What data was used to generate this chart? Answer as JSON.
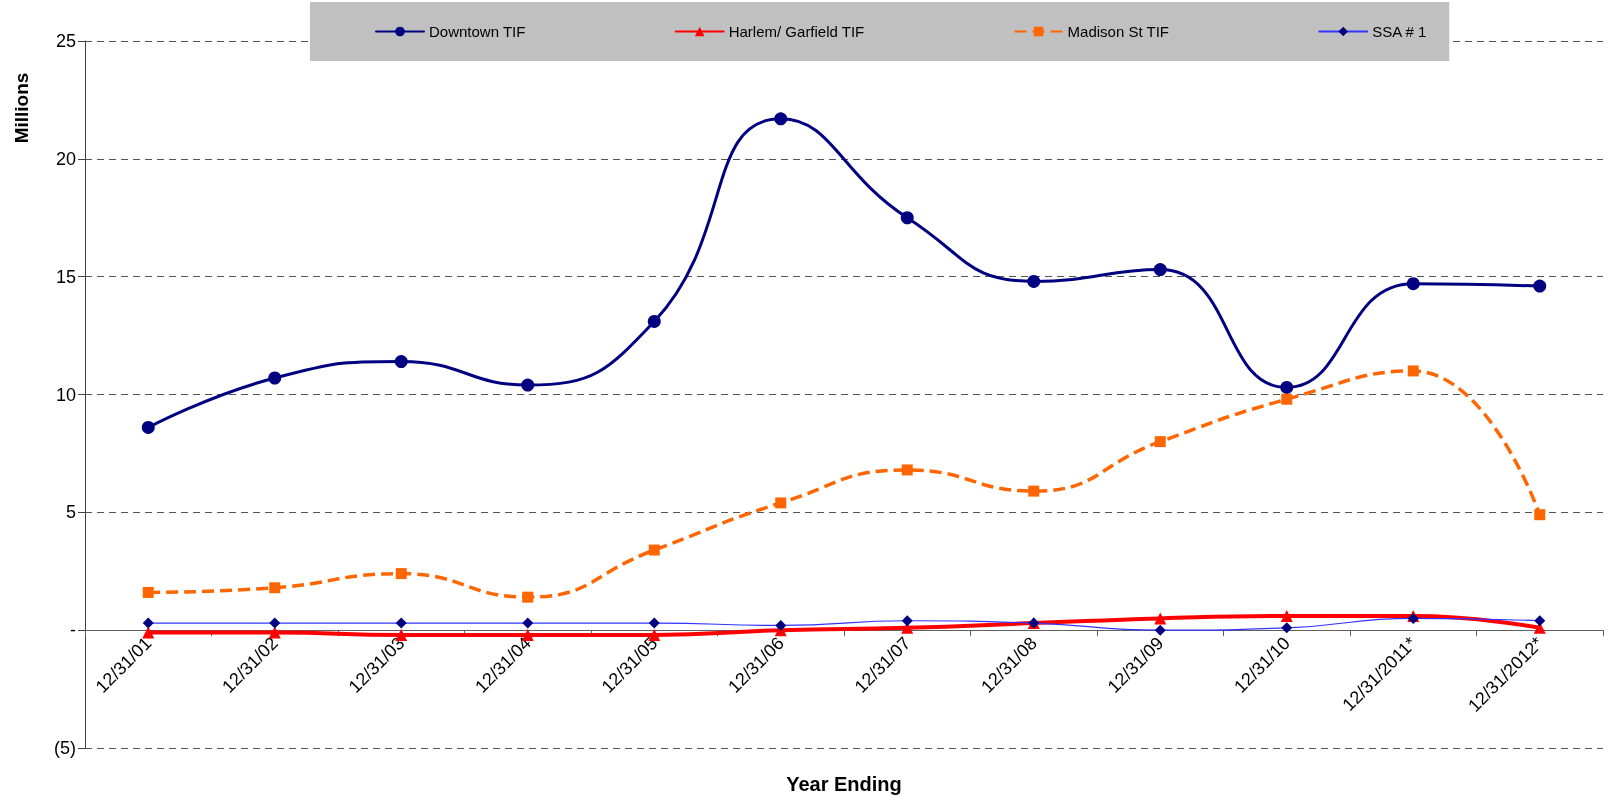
{
  "chart_data": {
    "type": "line",
    "categories": [
      "12/31/01",
      "12/31/02",
      "12/31/03",
      "12/31/04",
      "12/31/05",
      "12/31/06",
      "12/31/07",
      "12/31/08",
      "12/31/09",
      "12/31/10",
      "12/31/2011*",
      "12/31/2012*"
    ],
    "series": [
      {
        "name": "Downtown TIF",
        "color": "#000080",
        "marker": "circle",
        "line_style": "solid",
        "values": [
          8.6,
          10.7,
          11.4,
          10.4,
          13.1,
          21.7,
          17.5,
          14.8,
          15.3,
          10.3,
          14.7,
          14.6
        ]
      },
      {
        "name": "Harlem/ Garfield TIF",
        "color": "#ff0000",
        "marker": "triangle",
        "line_style": "solid",
        "values": [
          -0.1,
          -0.1,
          -0.2,
          -0.2,
          -0.2,
          0.0,
          0.1,
          0.3,
          0.5,
          0.6,
          0.6,
          0.1
        ]
      },
      {
        "name": "Madison St TIF",
        "color": "#ff6600",
        "marker": "square",
        "line_style": "dashed",
        "values": [
          1.6,
          1.8,
          2.4,
          1.4,
          3.4,
          5.4,
          6.8,
          5.9,
          8.0,
          9.8,
          11.0,
          4.9
        ]
      },
      {
        "name": "SSA # 1",
        "color": "#3333ff",
        "colors": [
          "#000080",
          "#000080",
          "#000080",
          "#000080",
          "#000080",
          "#000080",
          "#000080",
          "#000080",
          "#000080",
          "#000080",
          "#000080",
          "#000080"
        ],
        "marker": "diamond",
        "line_style": "solid",
        "values": [
          0.3,
          0.3,
          0.3,
          0.3,
          0.3,
          0.2,
          0.4,
          0.3,
          0.0,
          0.1,
          0.5,
          0.4
        ]
      }
    ],
    "xlabel": "Year Ending",
    "ylabel": "Millions",
    "ylim": [
      -5,
      25
    ],
    "yticks": [
      {
        "value": -5,
        "label": "(5)"
      },
      {
        "value": 0,
        "label": "-"
      },
      5,
      10,
      15,
      20,
      25
    ],
    "grid": "y",
    "legend": "top"
  }
}
